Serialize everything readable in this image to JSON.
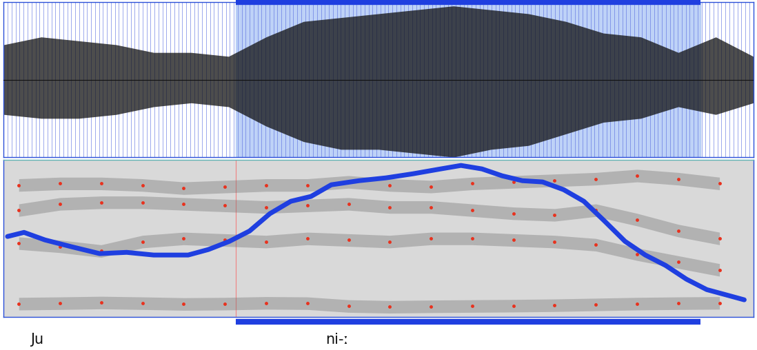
{
  "chart_data": [
    {
      "type": "area",
      "tick_labels": false,
      "xlim": [
        0,
        100
      ],
      "ylim": [
        -1,
        1
      ],
      "selection": [
        31,
        93
      ],
      "x": [
        0,
        5,
        10,
        15,
        20,
        25,
        30,
        35,
        40,
        45,
        50,
        55,
        60,
        65,
        70,
        75,
        80,
        85,
        90,
        95,
        100
      ],
      "upper": [
        0.45,
        0.55,
        0.5,
        0.45,
        0.35,
        0.35,
        0.3,
        0.55,
        0.75,
        0.8,
        0.85,
        0.9,
        0.95,
        0.9,
        0.85,
        0.75,
        0.6,
        0.55,
        0.35,
        0.55,
        0.3
      ],
      "lower": [
        -0.45,
        -0.5,
        -0.5,
        -0.45,
        -0.35,
        -0.3,
        -0.35,
        -0.6,
        -0.8,
        -0.9,
        -0.9,
        -0.95,
        -1.0,
        -0.9,
        -0.85,
        -0.7,
        -0.55,
        -0.5,
        -0.35,
        -0.45,
        -0.3
      ],
      "color": "#111111"
    },
    {
      "type": "line",
      "tick_labels": false,
      "xlim": [
        0,
        100
      ],
      "ylim": [
        0,
        100
      ],
      "selection": [
        31,
        93
      ],
      "annotations": [
        "Ju",
        "ni-ː"
      ],
      "series": [
        {
          "type": "line",
          "color": "#1f3fe0",
          "line_style": "solid",
          "x": [
            0.5,
            2.7,
            5.5,
            9.1,
            12.8,
            16.4,
            20.0,
            24.6,
            27.3,
            30.1,
            32.8,
            35.5,
            38.3,
            41.0,
            43.7,
            47.4,
            51.0,
            54.6,
            58.3,
            61.0,
            63.8,
            66.5,
            69.2,
            71.9,
            74.7,
            77.4,
            80.1,
            82.9,
            85.6,
            88.3,
            91.1,
            93.8,
            96.5,
            98.8
          ],
          "values": [
            51.3,
            53.9,
            49.1,
            44.7,
            40.4,
            41.2,
            39.5,
            39.5,
            43.0,
            48.2,
            54.8,
            65.8,
            73.7,
            76.8,
            84.2,
            86.8,
            88.6,
            91.2,
            94.3,
            96.5,
            94.3,
            89.9,
            86.8,
            86.0,
            81.1,
            73.7,
            61.4,
            48.2,
            39.5,
            32.9,
            24.1,
            17.5,
            14.0,
            11.0
          ]
        },
        {
          "type": "scatter",
          "color": "#e8321e",
          "marker": "dot",
          "x": [
            2,
            7.5,
            13,
            18.5,
            24,
            29.5,
            35,
            40.5,
            46,
            51.5,
            57,
            62.5,
            68,
            73.5,
            79,
            84.5,
            90,
            95.5
          ],
          "values": [
            8.5,
            8.8,
            9.2,
            8.8,
            8.3,
            8.5,
            9.0,
            8.8,
            7.0,
            6.5,
            6.8,
            7.0,
            7.2,
            7.5,
            8.0,
            8.5,
            8.8,
            9.0
          ]
        },
        {
          "type": "scatter",
          "color": "#e8321e",
          "marker": "dot",
          "x": [
            2,
            7.5,
            13,
            18.5,
            24,
            29.5,
            35,
            40.5,
            46,
            51.5,
            57,
            62.5,
            68,
            73.5,
            79,
            84.5,
            90,
            95.5
          ],
          "values": [
            47,
            45,
            42,
            48,
            50,
            49,
            48,
            50,
            49,
            48,
            50,
            50,
            49,
            48,
            46,
            40,
            35,
            30
          ]
        },
        {
          "type": "scatter",
          "color": "#e8321e",
          "marker": "dot",
          "x": [
            2,
            7.5,
            13,
            18.5,
            24,
            29.5,
            35,
            40.5,
            46,
            51.5,
            57,
            62.5,
            68,
            73.5,
            79,
            84.5,
            90,
            95.5
          ],
          "values": [
            68,
            72,
            73,
            73,
            72,
            71,
            70,
            71,
            72,
            70,
            70,
            68,
            66,
            65,
            68,
            62,
            55,
            50
          ]
        },
        {
          "type": "scatter",
          "color": "#e8321e",
          "marker": "dot",
          "x": [
            2,
            7.5,
            13,
            18.5,
            24,
            29.5,
            35,
            40.5,
            46,
            51.5,
            57,
            62.5,
            68,
            73.5,
            79,
            84.5,
            90,
            95.5
          ],
          "values": [
            84,
            85,
            85,
            84,
            82,
            83,
            84,
            84,
            86,
            84,
            83,
            85,
            86,
            87,
            88,
            90,
            88,
            85
          ]
        }
      ]
    }
  ]
}
